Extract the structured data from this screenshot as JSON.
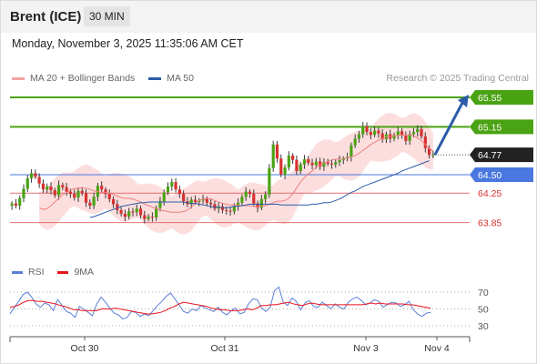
{
  "header": {
    "title": "Brent (ICE)",
    "interval": "30 MIN",
    "datetime": "Monday, November 3, 2025 11:35:06 AM CET"
  },
  "legend": {
    "items": [
      {
        "label": "MA 20 + Bollinger Bands",
        "color": "#f4a3a3"
      },
      {
        "label": "MA 50",
        "color": "#2c5ca8"
      }
    ],
    "credit": "Research © 2025 Trading Central"
  },
  "rsi_legend": {
    "items": [
      {
        "label": "RSI",
        "color": "#5b7fd6"
      },
      {
        "label": "9MA",
        "color": "#e8141c"
      }
    ]
  },
  "chart_data": {
    "type": "candlestick",
    "title": "Brent (ICE)",
    "interval": "30 MIN",
    "ylim": [
      63.55,
      65.75
    ],
    "x_ticks": [
      "Oct 30",
      "Oct 31",
      "Nov 3",
      "Nov 4"
    ],
    "current_price": {
      "value": "64.77",
      "color": "#222222"
    },
    "levels": [
      {
        "value": 65.55,
        "label": "65.55",
        "kind": "resistance",
        "color": "#4aa312"
      },
      {
        "value": 65.15,
        "label": "65.15",
        "kind": "resistance",
        "color": "#4aa312"
      },
      {
        "value": 64.5,
        "label": "64.50",
        "kind": "pivot",
        "color": "#4a78e0"
      },
      {
        "value": 64.25,
        "label": "64.25",
        "kind": "support",
        "color": "#e05050"
      },
      {
        "value": 63.85,
        "label": "63.85",
        "kind": "support",
        "color": "#e05050"
      }
    ],
    "forecast_arrow": {
      "from": 64.77,
      "to": 65.55,
      "color": "#2c5ca8"
    },
    "close": [
      64.11,
      64.08,
      64.18,
      64.31,
      64.45,
      64.52,
      64.47,
      64.38,
      64.3,
      64.34,
      64.29,
      64.22,
      64.36,
      64.33,
      64.27,
      64.24,
      64.19,
      64.28,
      64.25,
      64.12,
      64.08,
      64.2,
      64.35,
      64.3,
      64.24,
      64.17,
      64.1,
      64.02,
      63.97,
      63.93,
      64.0,
      63.99,
      64.04,
      63.95,
      63.9,
      63.93,
      63.92,
      64.05,
      64.14,
      64.26,
      64.34,
      64.4,
      64.3,
      64.24,
      64.14,
      64.1,
      64.16,
      64.13,
      64.15,
      64.17,
      64.12,
      64.1,
      64.04,
      64.07,
      64.02,
      64.01,
      64.0,
      64.07,
      64.12,
      64.2,
      64.27,
      64.24,
      64.11,
      64.05,
      64.17,
      64.23,
      64.59,
      64.91,
      64.72,
      64.5,
      64.6,
      64.76,
      64.7,
      64.55,
      64.64,
      64.71,
      64.66,
      64.63,
      64.68,
      64.61,
      64.67,
      64.65,
      64.64,
      64.67,
      64.7,
      64.72,
      64.74,
      64.9,
      64.99,
      65.05,
      65.16,
      65.08,
      65.04,
      65.1,
      65.06,
      64.98,
      65.05,
      64.99,
      65.04,
      65.09,
      65.03,
      64.96,
      65.05,
      65.08,
      65.12,
      65.02,
      64.86,
      64.77,
      64.77
    ],
    "ma20": [
      64.05,
      64.03,
      64.04,
      64.08,
      64.13,
      64.18,
      64.23,
      64.26,
      64.29,
      64.31,
      64.32,
      64.32,
      64.32,
      64.3,
      64.28,
      64.27,
      64.26,
      64.26,
      64.25,
      64.23,
      64.21,
      64.19,
      64.18,
      64.18,
      64.17,
      64.15,
      64.13,
      64.1,
      64.08,
      64.06,
      64.04,
      64.02,
      64.01,
      64.0,
      63.99,
      63.99,
      63.99,
      64.0,
      64.02,
      64.06,
      64.11,
      64.15,
      64.17,
      64.18,
      64.17,
      64.15,
      64.13,
      64.11,
      64.1,
      64.09,
      64.09,
      64.08,
      64.08,
      64.08,
      64.08,
      64.07,
      64.06,
      64.07,
      64.08,
      64.1,
      64.12,
      64.14,
      64.14,
      64.15,
      64.18,
      64.24,
      64.32,
      64.4,
      64.46,
      64.51,
      64.55,
      64.6,
      64.63,
      64.66,
      64.68,
      64.7,
      64.71,
      64.72,
      64.72,
      64.73,
      64.74,
      64.76,
      64.79,
      64.83,
      64.87,
      64.91,
      64.94,
      64.97,
      64.99,
      65.01,
      65.02,
      65.03,
      65.03,
      65.04,
      65.04,
      65.04,
      65.03,
      65.0,
      64.96,
      64.91,
      64.86,
      64.82
    ],
    "ma50": [
      63.92,
      63.93,
      63.95,
      63.97,
      63.99,
      64.01,
      64.03,
      64.05,
      64.07,
      64.08,
      64.09,
      64.1,
      64.11,
      64.12,
      64.12,
      64.13,
      64.13,
      64.13,
      64.13,
      64.13,
      64.13,
      64.13,
      64.13,
      64.13,
      64.13,
      64.12,
      64.11,
      64.11,
      64.1,
      64.09,
      64.08,
      64.07,
      64.06,
      64.06,
      64.05,
      64.05,
      64.06,
      64.07,
      64.07,
      64.08,
      64.09,
      64.1,
      64.1,
      64.1,
      64.1,
      64.1,
      64.1,
      64.1,
      64.1,
      64.09,
      64.09,
      64.09,
      64.09,
      64.09,
      64.09,
      64.09,
      64.09,
      64.1,
      64.1,
      64.11,
      64.12,
      64.12,
      64.13,
      64.15,
      64.17,
      64.2,
      64.23,
      64.26,
      64.28,
      64.31,
      64.34,
      64.36,
      64.38,
      64.4,
      64.42,
      64.44,
      64.46,
      64.48,
      64.5,
      64.52,
      64.55,
      64.57,
      64.59,
      64.61,
      64.63,
      64.65,
      64.67,
      64.69
    ],
    "bb_width": 0.27,
    "rsi": {
      "ylim": [
        20,
        80
      ],
      "ticks": [
        "70",
        "50",
        "30"
      ],
      "tick_values": [
        70,
        50,
        30
      ],
      "rsi": [
        44,
        52,
        59,
        67,
        70,
        64,
        56,
        52,
        57,
        55,
        48,
        61,
        54,
        47,
        45,
        40,
        53,
        50,
        46,
        42,
        56,
        64,
        58,
        51,
        45,
        43,
        38,
        40,
        47,
        46,
        41,
        44,
        42,
        48,
        54,
        59,
        65,
        69,
        62,
        55,
        47,
        45,
        50,
        48,
        54,
        51,
        49,
        47,
        52,
        46,
        43,
        48,
        51,
        44,
        46,
        56,
        62,
        61,
        51,
        47,
        52,
        72,
        76,
        58,
        54,
        63,
        59,
        49,
        57,
        60,
        53,
        52,
        58,
        54,
        50,
        56,
        52,
        50,
        58,
        62,
        64,
        60,
        55,
        57,
        61,
        59,
        52,
        55,
        58,
        57,
        53,
        55,
        59,
        49,
        44,
        41,
        45,
        46
      ],
      "ma9": [
        52,
        53,
        55,
        58,
        60,
        60,
        59,
        59,
        58,
        57,
        56,
        54,
        53,
        51,
        49,
        49,
        48,
        48,
        48,
        48,
        50,
        50,
        50,
        51,
        50,
        49,
        48,
        47,
        46,
        45,
        44,
        44,
        45,
        46,
        48,
        51,
        53,
        56,
        58,
        57,
        56,
        55,
        54,
        53,
        51,
        50,
        49,
        49,
        48,
        48,
        48,
        49,
        50,
        49,
        51,
        54,
        54,
        55,
        55,
        56,
        57,
        58,
        56,
        55,
        54,
        56,
        57,
        56,
        55,
        55,
        55,
        55,
        55,
        55,
        55,
        55,
        55,
        55,
        56,
        57,
        56,
        57,
        56,
        56,
        56,
        56,
        56,
        55,
        55,
        54,
        53,
        52,
        51
      ]
    }
  }
}
